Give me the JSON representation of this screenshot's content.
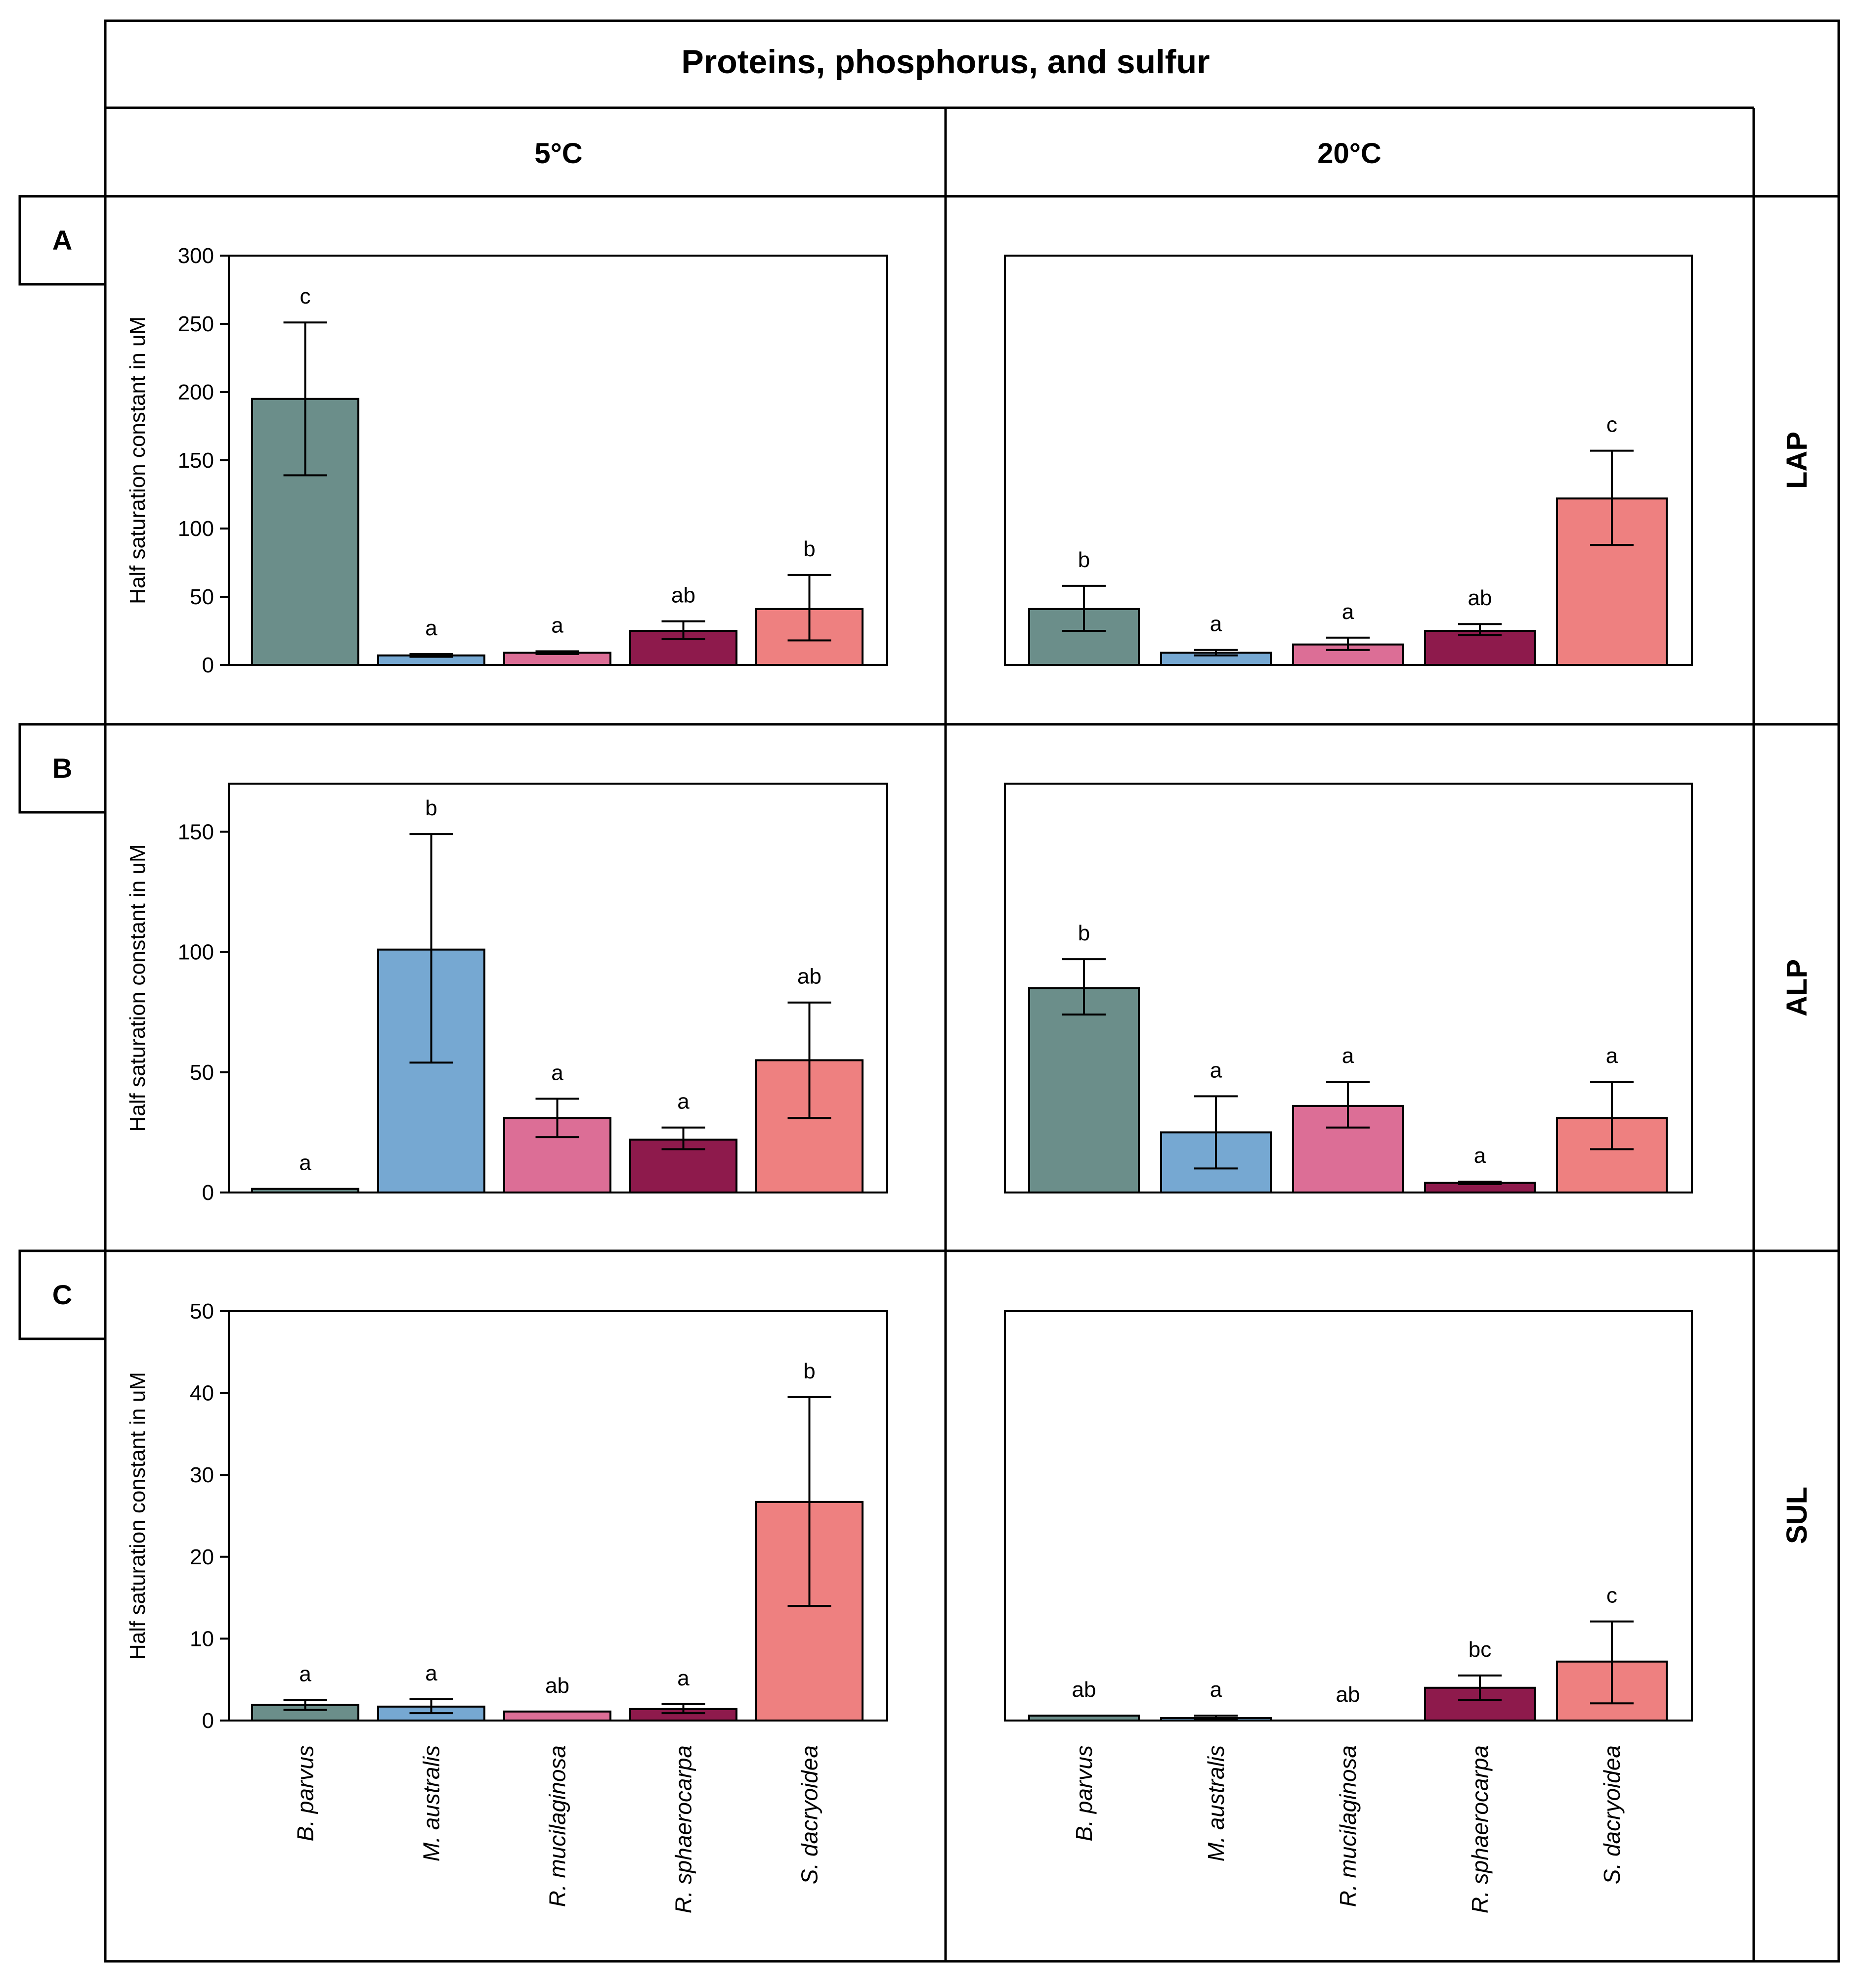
{
  "figure": {
    "title": "Proteins, phosphorus, and sulfur",
    "columns": [
      "5°C",
      "20°C"
    ],
    "rows": [
      {
        "letter": "A",
        "enzyme": "LAP"
      },
      {
        "letter": "B",
        "enzyme": "ALP"
      },
      {
        "letter": "C",
        "enzyme": "SUL"
      }
    ],
    "species": [
      "B. parvus",
      "M. australis",
      "R. mucilaginosa",
      "R. sphaerocarpa",
      "S. dacryoidea"
    ],
    "colors": [
      "#6b8e8a",
      "#76a8d2",
      "#dc6e96",
      "#8e1a4c",
      "#ee8080"
    ]
  },
  "chart_data": [
    {
      "type": "bar",
      "panel": "A",
      "enzyme": "LAP",
      "temperature": "5°C",
      "ylabel": "Half saturation constant in uM",
      "ylim": [
        0,
        300
      ],
      "yticks": [
        0,
        50,
        100,
        150,
        200,
        250,
        300
      ],
      "show_yaxis": true,
      "categories": [
        "B. parvus",
        "M. australis",
        "R. mucilaginosa",
        "R. sphaerocarpa",
        "S. dacryoidea"
      ],
      "values": [
        195,
        7,
        9,
        25,
        41
      ],
      "err_low": [
        139,
        6,
        8,
        19,
        18
      ],
      "err_high": [
        251,
        8,
        10,
        32,
        66
      ],
      "letters": [
        "c",
        "a",
        "a",
        "ab",
        "b"
      ]
    },
    {
      "type": "bar",
      "panel": "A",
      "enzyme": "LAP",
      "temperature": "20°C",
      "ylabel": "",
      "ylim": [
        0,
        300
      ],
      "yticks": [],
      "show_yaxis": false,
      "categories": [
        "B. parvus",
        "M. australis",
        "R. mucilaginosa",
        "R. sphaerocarpa",
        "S. dacryoidea"
      ],
      "values": [
        41,
        9,
        15,
        25,
        122
      ],
      "err_low": [
        25,
        7,
        11,
        22,
        88
      ],
      "err_high": [
        58,
        11,
        20,
        30,
        157
      ],
      "letters": [
        "b",
        "a",
        "a",
        "ab",
        "c"
      ]
    },
    {
      "type": "bar",
      "panel": "B",
      "enzyme": "ALP",
      "temperature": "5°C",
      "ylabel": "Half saturation constant in uM",
      "ylim": [
        0,
        170
      ],
      "yticks": [
        0,
        50,
        100,
        150
      ],
      "show_yaxis": true,
      "categories": [
        "B. parvus",
        "M. australis",
        "R. mucilaginosa",
        "R. sphaerocarpa",
        "S. dacryoidea"
      ],
      "values": [
        1.5,
        101,
        31,
        22,
        55
      ],
      "err_low": [
        1.5,
        54,
        23,
        18,
        31
      ],
      "err_high": [
        1.5,
        149,
        39,
        27,
        79
      ],
      "letters": [
        "a",
        "b",
        "a",
        "a",
        "ab"
      ]
    },
    {
      "type": "bar",
      "panel": "B",
      "enzyme": "ALP",
      "temperature": "20°C",
      "ylabel": "",
      "ylim": [
        0,
        170
      ],
      "yticks": [],
      "show_yaxis": false,
      "categories": [
        "B. parvus",
        "M. australis",
        "R. mucilaginosa",
        "R. sphaerocarpa",
        "S. dacryoidea"
      ],
      "values": [
        85,
        25,
        36,
        4,
        31
      ],
      "err_low": [
        74,
        10,
        27,
        3.5,
        18
      ],
      "err_high": [
        97,
        40,
        46,
        4.5,
        46
      ],
      "letters": [
        "b",
        "a",
        "a",
        "a",
        "a"
      ]
    },
    {
      "type": "bar",
      "panel": "C",
      "enzyme": "SUL",
      "temperature": "5°C",
      "ylabel": "Half saturation constant in uM",
      "ylim": [
        0,
        50
      ],
      "yticks": [
        0,
        10,
        20,
        30,
        40,
        50
      ],
      "show_yaxis": true,
      "categories": [
        "B. parvus",
        "M. australis",
        "R. mucilaginosa",
        "R. sphaerocarpa",
        "S. dacryoidea"
      ],
      "values": [
        1.9,
        1.7,
        1.1,
        1.4,
        26.7
      ],
      "err_low": [
        1.3,
        0.9,
        1.1,
        0.9,
        14
      ],
      "err_high": [
        2.5,
        2.6,
        1.1,
        2.0,
        39.5
      ],
      "letters": [
        "a",
        "a",
        "ab",
        "a",
        "b"
      ]
    },
    {
      "type": "bar",
      "panel": "C",
      "enzyme": "SUL",
      "temperature": "20°C",
      "ylabel": "",
      "ylim": [
        0,
        50
      ],
      "yticks": [],
      "show_yaxis": false,
      "categories": [
        "B. parvus",
        "M. australis",
        "R. mucilaginosa",
        "R. sphaerocarpa",
        "S. dacryoidea"
      ],
      "values": [
        0.6,
        0.3,
        0,
        4.0,
        7.2
      ],
      "err_low": [
        0.6,
        0.1,
        0,
        2.5,
        2.1
      ],
      "err_high": [
        0.6,
        0.6,
        0,
        5.5,
        12.1
      ],
      "letters": [
        "ab",
        "a",
        "ab",
        "bc",
        "c"
      ]
    }
  ]
}
